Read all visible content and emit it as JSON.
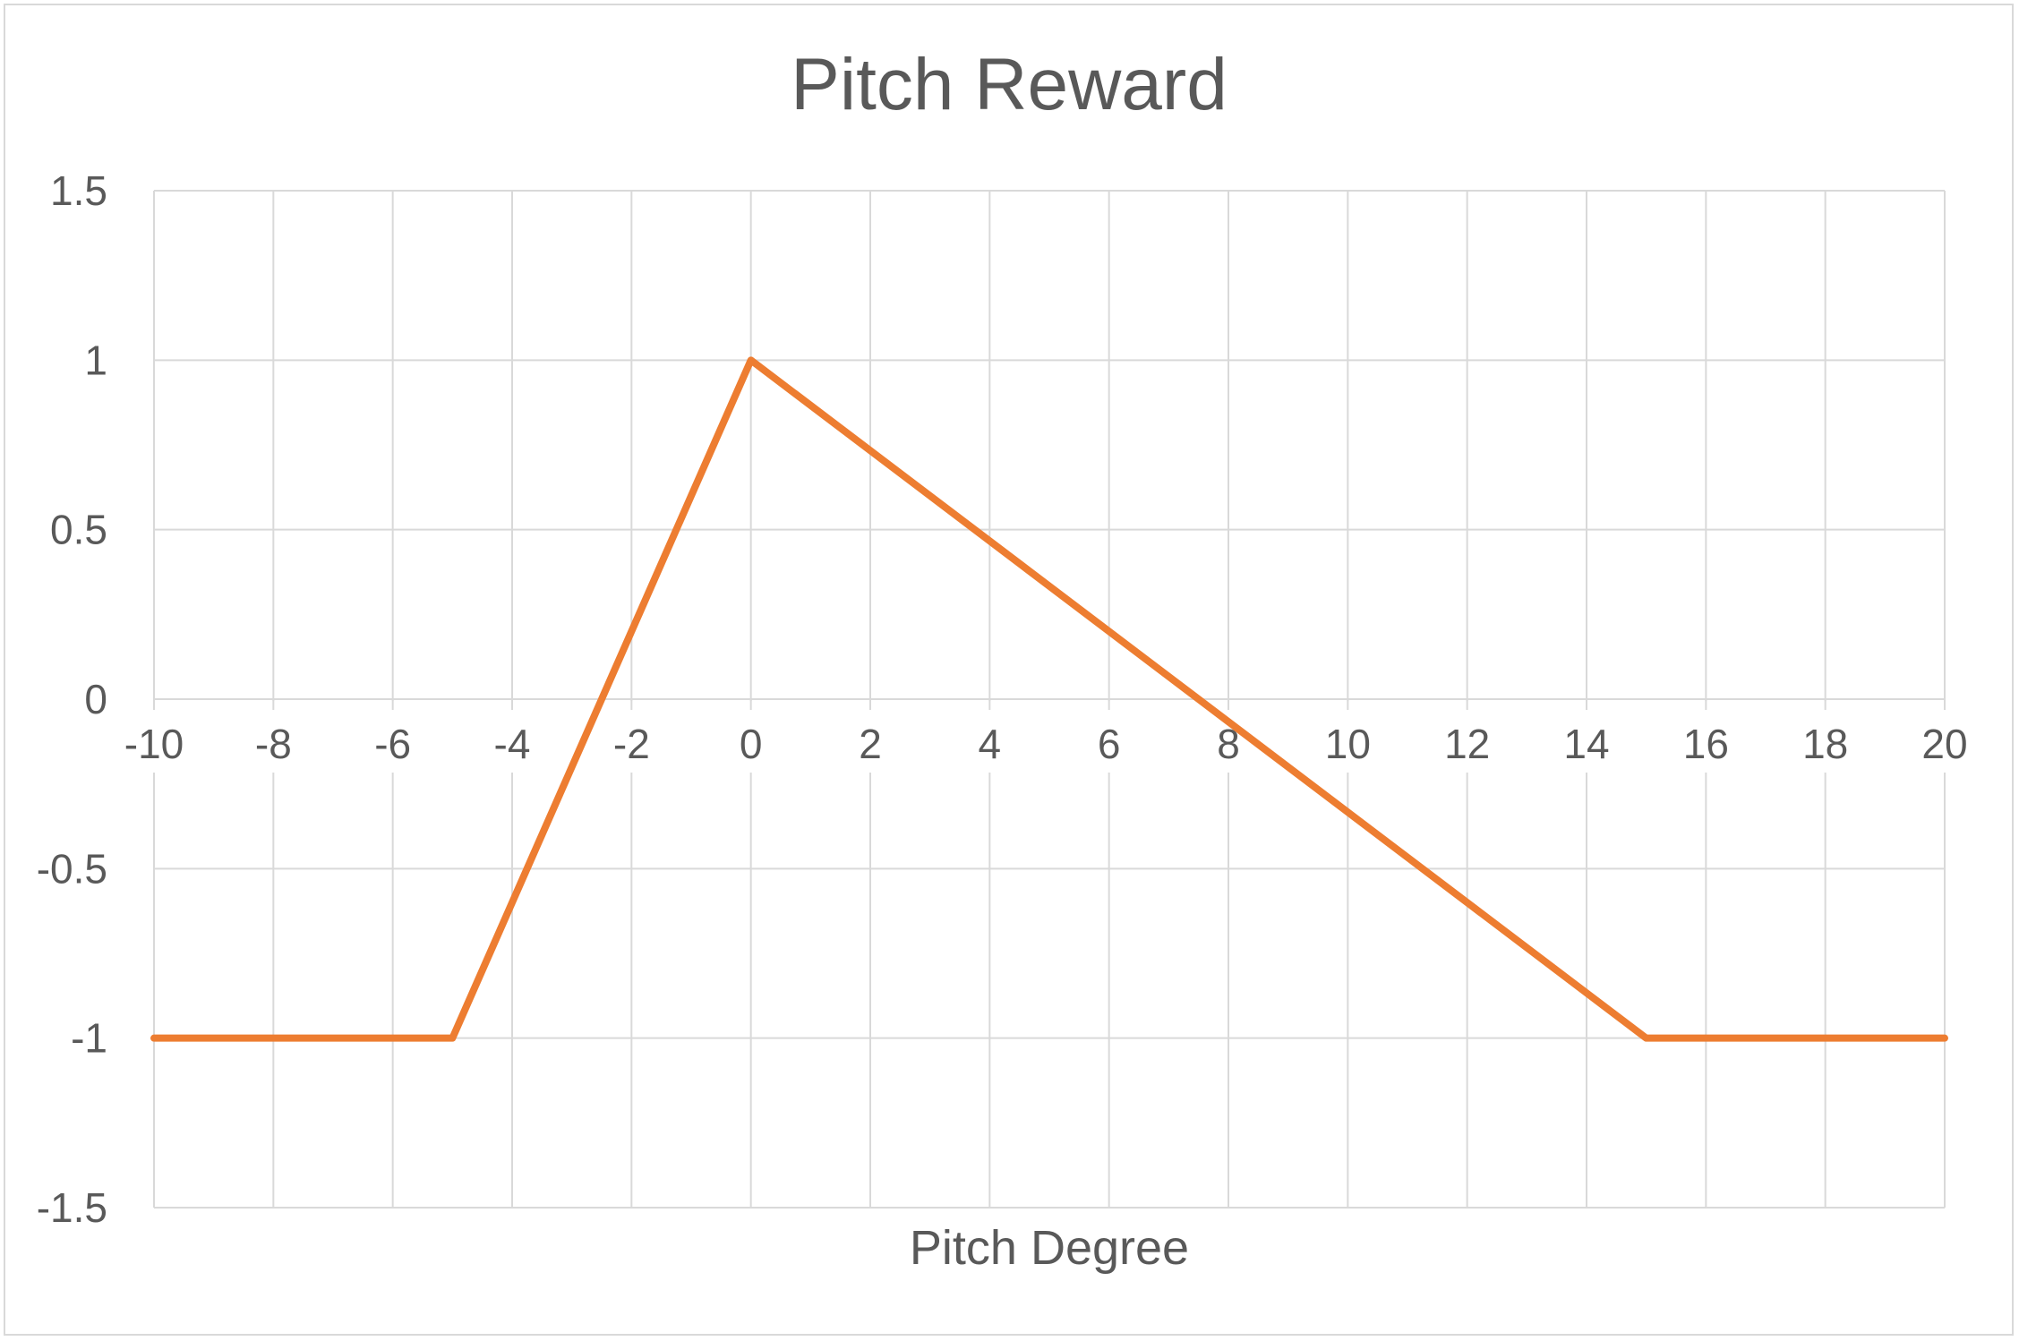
{
  "chart_data": {
    "type": "line",
    "title": "Pitch Reward",
    "xlabel": "Pitch Degree",
    "ylabel": "",
    "xlim": [
      -10,
      20
    ],
    "ylim": [
      -1.5,
      1.5
    ],
    "x_ticks": [
      -10,
      -8,
      -6,
      -4,
      -2,
      0,
      2,
      4,
      6,
      8,
      10,
      12,
      14,
      16,
      18,
      20
    ],
    "y_ticks": [
      1.5,
      1,
      0.5,
      0,
      -0.5,
      -1,
      -1.5
    ],
    "grid": true,
    "legend": "none",
    "series": [
      {
        "color": "#ED7D31",
        "x": [
          -10,
          -5,
          0,
          15,
          20
        ],
        "y": [
          -1,
          -1,
          1,
          -1,
          -1
        ]
      }
    ]
  }
}
